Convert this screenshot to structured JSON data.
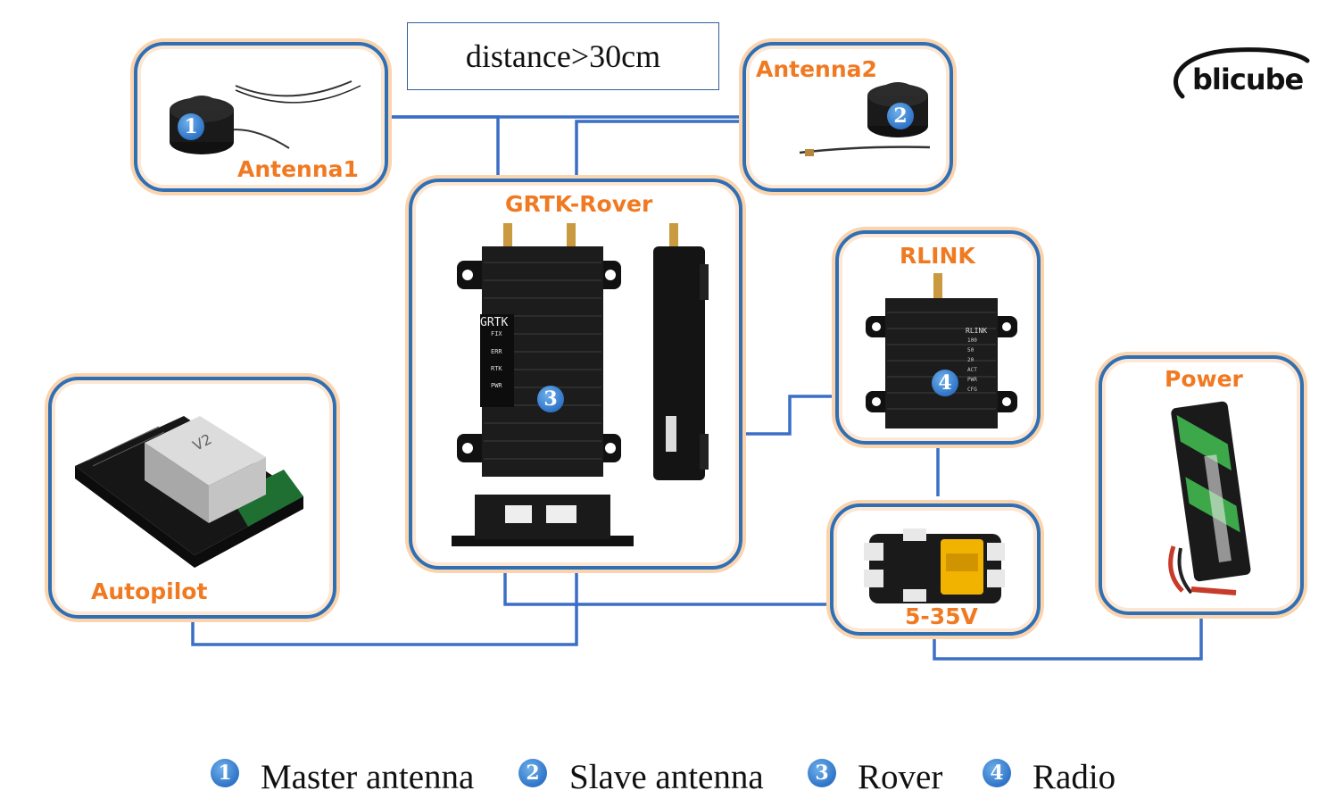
{
  "distance_label": "distance>30cm",
  "logo_text": "blicube",
  "nodes": {
    "antenna1": {
      "label": "Antenna1",
      "num": "1"
    },
    "antenna2": {
      "label": "Antenna2",
      "num": "2"
    },
    "rover": {
      "label": "GRTK-Rover",
      "num": "3",
      "device_text": "GRTK",
      "leds": [
        "FIX",
        "ERR",
        "RTK",
        "PWR"
      ]
    },
    "rlink": {
      "label": "RLINK",
      "num": "4",
      "device_text": "RLINK",
      "leds": [
        "100",
        "50",
        "20",
        "ACT",
        "PWR",
        "CFG"
      ]
    },
    "power": {
      "label": "Power"
    },
    "autopilot": {
      "label": "Autopilot",
      "device_text": "V2"
    },
    "regulator": {
      "label": "5-35V"
    }
  },
  "legend": [
    {
      "num": "1",
      "text": "Master antenna"
    },
    {
      "num": "2",
      "text": "Slave antenna"
    },
    {
      "num": "3",
      "text": "Rover"
    },
    {
      "num": "4",
      "text": "Radio"
    }
  ],
  "colors": {
    "wire": "#3b6fc6",
    "label": "#f07a22",
    "box_border": "#2f6fb4"
  }
}
